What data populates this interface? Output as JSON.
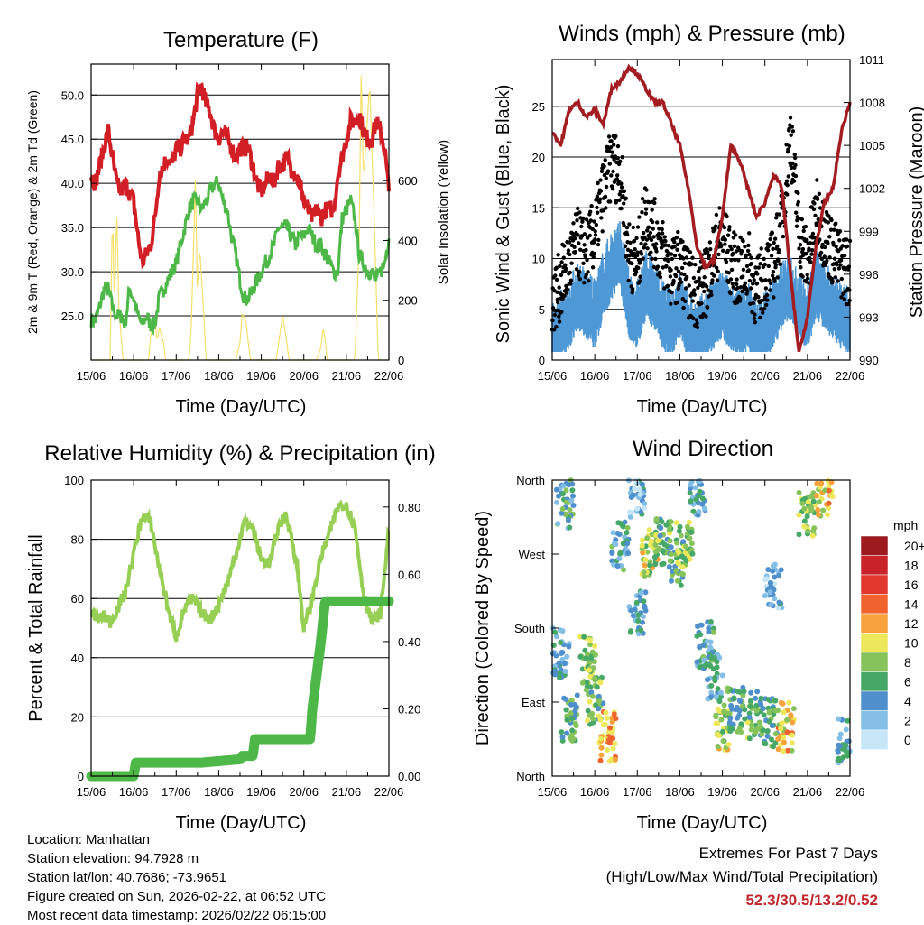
{
  "info": {
    "location": "Location: Manhattan",
    "elevation": "Station elevation: 94.7928 m",
    "latlon": "Station lat/lon: 40.7686; -73.9651",
    "created": "Figure created on Sun, 2026-02-22, at 06:52 UTC",
    "recent": "Most recent data timestamp: 2026/02/22 06:15:00"
  },
  "extremes": {
    "title": "Extremes For Past 7 Days",
    "subtitle": "(High/Low/Max Wind/Total Precipitation)",
    "values": "52.3/30.5/13.2/0.52"
  },
  "colors": {
    "temp": "#d21f26",
    "dew": "#4db848",
    "solar": "#f5e06a",
    "wind": "#4f98d6",
    "gust": "#000000",
    "pressure": "#a31c22",
    "rh": "#97cf55",
    "precip": "#4db848"
  },
  "chart_data": [
    {
      "type": "line",
      "title": "Temperature (F)",
      "xlabel": "Time (Day/UTC)",
      "ylabel": "2m & 9m T (Red, Orange) & 2m Td (Green)",
      "ylabel_right": "Solar Insolation (Yellow)",
      "x_ticks": [
        "15/06",
        "16/06",
        "17/06",
        "18/06",
        "19/06",
        "20/06",
        "21/06",
        "22/06"
      ],
      "xlim": [
        0,
        7
      ],
      "ylim": [
        20,
        53.5
      ],
      "y_ticks": [
        "25.0",
        "30.0",
        "35.0",
        "40.0",
        "45.0",
        "50.0"
      ],
      "y_tick_values": [
        25,
        30,
        35,
        40,
        45,
        50
      ],
      "ylim_right": [
        0,
        990
      ],
      "y_right_ticks": [
        "0",
        "200",
        "400",
        "600"
      ],
      "y_right_tick_values": [
        0,
        200,
        400,
        600
      ],
      "grid": true,
      "series": [
        {
          "name": "2m T",
          "color": "#d21f26",
          "x": [
            0,
            0.1,
            0.2,
            0.3,
            0.4,
            0.5,
            0.6,
            0.7,
            0.8,
            0.9,
            1.0,
            1.1,
            1.2,
            1.3,
            1.4,
            1.5,
            1.6,
            1.7,
            1.8,
            1.9,
            2.0,
            2.1,
            2.2,
            2.3,
            2.4,
            2.5,
            2.6,
            2.7,
            2.8,
            2.9,
            3.0,
            3.1,
            3.2,
            3.3,
            3.4,
            3.5,
            3.6,
            3.7,
            3.8,
            3.9,
            4.0,
            4.1,
            4.2,
            4.3,
            4.4,
            4.5,
            4.6,
            4.7,
            4.8,
            4.9,
            5.0,
            5.1,
            5.2,
            5.3,
            5.4,
            5.5,
            5.6,
            5.7,
            5.8,
            5.9,
            6.0,
            6.1,
            6.2,
            6.3,
            6.4,
            6.5,
            6.6,
            6.7,
            6.8,
            6.9,
            7.0
          ],
          "values": [
            41,
            40,
            42,
            44,
            46,
            43,
            40,
            39,
            40,
            39,
            38,
            34,
            31,
            32,
            33,
            36,
            41,
            42,
            43,
            42,
            44,
            44,
            45,
            45,
            47,
            50,
            51,
            49,
            48,
            46,
            45,
            46,
            45,
            44,
            43,
            44,
            44,
            44,
            42,
            40,
            39,
            40,
            41,
            40,
            42,
            42,
            43,
            42,
            41,
            40,
            38,
            37,
            36,
            37,
            36,
            37,
            37,
            37,
            41,
            43,
            45,
            47,
            47,
            48,
            46,
            45,
            45,
            47,
            46,
            44,
            39
          ]
        },
        {
          "name": "2m Td",
          "color": "#4db848",
          "x": [
            0,
            0.1,
            0.2,
            0.3,
            0.4,
            0.5,
            0.6,
            0.7,
            0.8,
            0.9,
            1.0,
            1.1,
            1.2,
            1.3,
            1.4,
            1.5,
            1.6,
            1.7,
            1.8,
            1.9,
            2.0,
            2.1,
            2.2,
            2.3,
            2.4,
            2.5,
            2.6,
            2.7,
            2.8,
            2.9,
            3.0,
            3.1,
            3.2,
            3.3,
            3.4,
            3.5,
            3.6,
            3.7,
            3.8,
            3.9,
            4.0,
            4.1,
            4.2,
            4.3,
            4.4,
            4.5,
            4.6,
            4.7,
            4.8,
            4.9,
            5.0,
            5.1,
            5.2,
            5.3,
            5.4,
            5.5,
            5.6,
            5.7,
            5.8,
            5.9,
            6.0,
            6.1,
            6.2,
            6.3,
            6.4,
            6.5,
            6.6,
            6.7,
            6.8,
            6.9,
            7.0
          ],
          "values": [
            24.5,
            24.5,
            26,
            28,
            28,
            26,
            25,
            25,
            24,
            28,
            27,
            25,
            24,
            25,
            24,
            24,
            27,
            28,
            29,
            30,
            31,
            33,
            35,
            37,
            38,
            38,
            37,
            38,
            39,
            40,
            40,
            38,
            37,
            34,
            32,
            29,
            27,
            27,
            28,
            29,
            30,
            31,
            32,
            33,
            35,
            35,
            35,
            34,
            33,
            34,
            34,
            35,
            34,
            33,
            33,
            32,
            31,
            30,
            30,
            36,
            37,
            38,
            36,
            32,
            31,
            30,
            30,
            29,
            30,
            31,
            34
          ]
        },
        {
          "name": "Solar Insolation",
          "color": "#f5e06a",
          "axis": "right",
          "x": [
            0.0,
            0.45,
            0.5,
            0.55,
            0.6,
            0.65,
            0.75,
            1.35,
            1.4,
            1.5,
            1.55,
            1.6,
            1.7,
            1.75,
            2.3,
            2.35,
            2.45,
            2.5,
            2.55,
            2.65,
            2.7,
            3.4,
            3.5,
            3.55,
            3.65,
            3.7,
            3.75,
            4.35,
            4.5,
            4.6,
            4.65,
            5.3,
            5.4,
            5.45,
            5.5,
            5.55,
            6.2,
            6.3,
            6.35,
            6.4,
            6.45,
            6.55,
            6.6,
            6.65,
            6.75,
            7.0
          ],
          "values": [
            0,
            0,
            520,
            150,
            520,
            180,
            0,
            0,
            80,
            140,
            60,
            110,
            60,
            0,
            0,
            90,
            600,
            220,
            380,
            150,
            0,
            0,
            60,
            160,
            120,
            50,
            0,
            0,
            150,
            60,
            0,
            0,
            40,
            110,
            70,
            0,
            0,
            400,
            990,
            600,
            700,
            930,
            700,
            500,
            0,
            0
          ]
        }
      ]
    },
    {
      "type": "line",
      "title": "Winds (mph) & Pressure (mb)",
      "xlabel": "Time (Day/UTC)",
      "ylabel": "Sonic Wind & Gust (Blue, Black)",
      "ylabel_right": "Station Pressure (Maroon)",
      "x_ticks": [
        "15/06",
        "16/06",
        "17/06",
        "18/06",
        "19/06",
        "20/06",
        "21/06",
        "22/06"
      ],
      "xlim": [
        0,
        7
      ],
      "ylim": [
        0,
        29.6
      ],
      "y_ticks": [
        "0",
        "5",
        "10",
        "15",
        "20",
        "25"
      ],
      "y_tick_values": [
        0,
        5,
        10,
        15,
        20,
        25
      ],
      "ylim_right": [
        990,
        1011
      ],
      "y_right_ticks": [
        "990",
        "993",
        "996",
        "999",
        "1002",
        "1005",
        "1008",
        "1011"
      ],
      "y_right_tick_values": [
        990,
        993,
        996,
        999,
        1002,
        1005,
        1008,
        1011
      ],
      "grid": true,
      "series": [
        {
          "name": "Sonic Wind",
          "color": "#4f98d6",
          "x": [
            0,
            0.2,
            0.4,
            0.6,
            0.8,
            1.0,
            1.2,
            1.4,
            1.6,
            1.8,
            2.0,
            2.2,
            2.4,
            2.6,
            2.8,
            3.0,
            3.2,
            3.4,
            3.6,
            3.8,
            4.0,
            4.2,
            4.4,
            4.6,
            4.8,
            5.0,
            5.2,
            5.4,
            5.6,
            5.8,
            6.0,
            6.2,
            6.4,
            6.6,
            6.8,
            7.0
          ],
          "values": [
            3,
            4,
            5,
            7,
            6,
            5,
            8,
            10,
            11,
            6,
            5,
            8,
            7,
            5,
            4,
            6,
            4,
            3,
            4,
            5,
            6,
            5,
            4,
            5,
            3,
            4,
            5,
            7,
            8,
            6,
            5,
            8,
            7,
            6,
            5,
            4
          ]
        },
        {
          "name": "Gust",
          "color": "#000000",
          "x": [
            0,
            0.2,
            0.4,
            0.6,
            0.8,
            1.0,
            1.2,
            1.4,
            1.6,
            1.8,
            2.0,
            2.2,
            2.4,
            2.6,
            2.8,
            3.0,
            3.2,
            3.4,
            3.6,
            3.8,
            4.0,
            4.2,
            4.4,
            4.6,
            4.8,
            5.0,
            5.2,
            5.4,
            5.6,
            5.8,
            6.0,
            6.2,
            6.4,
            6.6,
            6.8,
            7.0
          ],
          "values": [
            5,
            7,
            9,
            11,
            10,
            12,
            16,
            19,
            18,
            10,
            9,
            14,
            12,
            10,
            8,
            9,
            7,
            6,
            7,
            10,
            12,
            9,
            8,
            9,
            6,
            8,
            9,
            13,
            22,
            12,
            9,
            14,
            12,
            10,
            9,
            8
          ]
        },
        {
          "name": "Station Pressure",
          "color": "#a31c22",
          "axis": "right",
          "x": [
            0,
            0.2,
            0.4,
            0.6,
            0.8,
            1.0,
            1.2,
            1.4,
            1.6,
            1.8,
            2.0,
            2.2,
            2.4,
            2.6,
            2.8,
            3.0,
            3.2,
            3.4,
            3.6,
            3.8,
            4.0,
            4.2,
            4.4,
            4.6,
            4.8,
            5.0,
            5.2,
            5.4,
            5.6,
            5.8,
            6.0,
            6.2,
            6.4,
            6.6,
            6.8,
            7.0
          ],
          "values": [
            1006,
            1005,
            1007.5,
            1008,
            1007,
            1007.5,
            1006.5,
            1009,
            1009.5,
            1010.5,
            1010,
            1009,
            1008,
            1008,
            1006.5,
            1005,
            1002,
            998,
            996.5,
            997,
            1000,
            1005,
            1004,
            1002,
            1000,
            1001,
            1003,
            1002,
            996,
            990.5,
            993,
            998,
            1001,
            1002,
            1006,
            1008
          ]
        }
      ]
    },
    {
      "type": "line",
      "title": "Relative Humidity (%) & Precipitation (in)",
      "xlabel": "Time (Day/UTC)",
      "ylabel": "Percent & Total Rainfall",
      "x_ticks": [
        "15/06",
        "16/06",
        "17/06",
        "18/06",
        "19/06",
        "20/06",
        "21/06",
        "22/06"
      ],
      "xlim": [
        0,
        7
      ],
      "ylim": [
        0,
        100
      ],
      "y_ticks": [
        "0",
        "20",
        "40",
        "60",
        "80",
        "100"
      ],
      "y_tick_values": [
        0,
        20,
        40,
        60,
        80,
        100
      ],
      "ylim_right": [
        0,
        0.88
      ],
      "y_right_ticks": [
        "0.00",
        "0.20",
        "0.40",
        "0.60",
        "0.80"
      ],
      "y_right_tick_values": [
        0,
        0.2,
        0.4,
        0.6,
        0.8
      ],
      "grid": true,
      "series": [
        {
          "name": "Relative Humidity",
          "color": "#97cf55",
          "x": [
            0,
            0.15,
            0.3,
            0.45,
            0.6,
            0.8,
            1.0,
            1.2,
            1.4,
            1.55,
            1.7,
            1.85,
            2.0,
            2.2,
            2.4,
            2.6,
            2.8,
            3.0,
            3.2,
            3.4,
            3.6,
            3.8,
            4.0,
            4.2,
            4.4,
            4.55,
            4.7,
            4.85,
            5.0,
            5.2,
            5.4,
            5.6,
            5.8,
            6.0,
            6.2,
            6.4,
            6.6,
            6.8,
            7.0
          ],
          "values": [
            55,
            53,
            54,
            52,
            56,
            62,
            75,
            88,
            86,
            74,
            64,
            54,
            47,
            57,
            60,
            55,
            53,
            58,
            65,
            75,
            86,
            84,
            73,
            72,
            84,
            88,
            82,
            70,
            50,
            60,
            74,
            82,
            91,
            92,
            84,
            62,
            52,
            55,
            83
          ]
        },
        {
          "name": "Total Precipitation",
          "color": "#4db848",
          "axis": "right",
          "x": [
            0,
            1.0,
            1.05,
            2.6,
            3.5,
            3.55,
            3.8,
            3.85,
            5.15,
            5.2,
            5.3,
            5.4,
            5.5,
            7.0
          ],
          "values": [
            0,
            0,
            0.04,
            0.04,
            0.05,
            0.06,
            0.06,
            0.11,
            0.11,
            0.2,
            0.3,
            0.4,
            0.52,
            0.52
          ]
        }
      ]
    },
    {
      "type": "scatter",
      "title": "Wind Direction",
      "xlabel": "Time (Day/UTC)",
      "ylabel": "Direction (Colored By Speed)",
      "x_ticks": [
        "15/06",
        "16/06",
        "17/06",
        "18/06",
        "19/06",
        "20/06",
        "21/06",
        "22/06"
      ],
      "xlim": [
        0,
        7
      ],
      "ylim": [
        0,
        360
      ],
      "y_ticks": [
        "North",
        "East",
        "South",
        "West",
        "North"
      ],
      "y_tick_values": [
        0,
        90,
        180,
        270,
        360
      ],
      "colorbar": {
        "title": "mph",
        "labels": [
          "20+",
          "18",
          "16",
          "14",
          "12",
          "10",
          "8",
          "6",
          "4",
          "2",
          "0"
        ],
        "colors": [
          "#9b1b1e",
          "#c8232a",
          "#e0382d",
          "#f0632f",
          "#f7a23c",
          "#ede85b",
          "#86c35a",
          "#45a866",
          "#4f8fcb",
          "#83bee6",
          "#c6e6f7"
        ]
      },
      "clusters": [
        {
          "x": 0.3,
          "dir": 330,
          "speed": 5
        },
        {
          "x": 0.2,
          "dir": 150,
          "speed": 4
        },
        {
          "x": 0.4,
          "dir": 70,
          "speed": 6
        },
        {
          "x": 0.85,
          "dir": 140,
          "speed": 8
        },
        {
          "x": 1.0,
          "dir": 90,
          "speed": 7
        },
        {
          "x": 1.3,
          "dir": 48,
          "speed": 12
        },
        {
          "x": 1.6,
          "dir": 280,
          "speed": 5
        },
        {
          "x": 2.0,
          "dir": 345,
          "speed": 3
        },
        {
          "x": 2.0,
          "dir": 200,
          "speed": 4
        },
        {
          "x": 2.3,
          "dir": 270,
          "speed": 9
        },
        {
          "x": 2.6,
          "dir": 285,
          "speed": 7
        },
        {
          "x": 2.9,
          "dir": 260,
          "speed": 6
        },
        {
          "x": 3.1,
          "dir": 280,
          "speed": 8
        },
        {
          "x": 3.4,
          "dir": 345,
          "speed": 4
        },
        {
          "x": 3.6,
          "dir": 160,
          "speed": 5
        },
        {
          "x": 3.8,
          "dir": 120,
          "speed": 4
        },
        {
          "x": 4.0,
          "dir": 60,
          "speed": 9
        },
        {
          "x": 4.3,
          "dir": 80,
          "speed": 6
        },
        {
          "x": 4.7,
          "dir": 75,
          "speed": 7
        },
        {
          "x": 5.1,
          "dir": 65,
          "speed": 6
        },
        {
          "x": 5.5,
          "dir": 60,
          "speed": 11
        },
        {
          "x": 5.2,
          "dir": 230,
          "speed": 3
        },
        {
          "x": 6.0,
          "dir": 320,
          "speed": 8
        },
        {
          "x": 6.4,
          "dir": 345,
          "speed": 11
        },
        {
          "x": 6.9,
          "dir": 40,
          "speed": 4
        }
      ]
    }
  ]
}
